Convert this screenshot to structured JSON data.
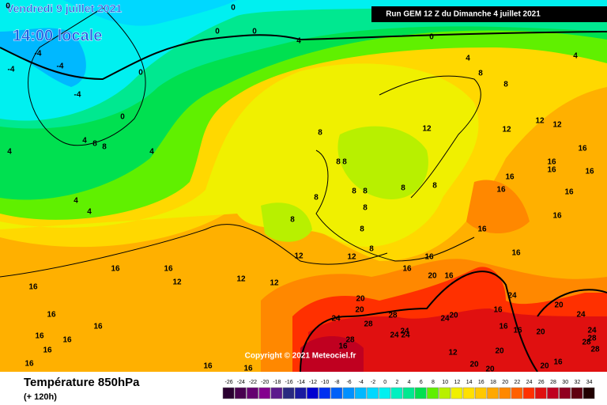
{
  "header": {
    "date": "Vendredi 9 juillet 2021",
    "time": "14:00 locale",
    "run": "Run GEM 12 Z du Dimanche 4 juillet 2021"
  },
  "copyright": "Copyright © 2021 Meteociel.fr",
  "footer": {
    "title": "Température 850hPa",
    "lead": "(+ 120h)"
  },
  "legend": {
    "values": [
      -26,
      -24,
      -22,
      -20,
      -18,
      -16,
      -14,
      -12,
      -10,
      -8,
      -6,
      -4,
      -2,
      0,
      2,
      4,
      6,
      8,
      10,
      12,
      14,
      16,
      18,
      20,
      22,
      24,
      26,
      28,
      30,
      32,
      34
    ],
    "colors": [
      "#2a0030",
      "#48004e",
      "#650070",
      "#84008e",
      "#5c1a8c",
      "#2a2a80",
      "#1a1aa0",
      "#0000d0",
      "#0030f0",
      "#0060f8",
      "#0090ff",
      "#00b8ff",
      "#00d8ff",
      "#00f0f0",
      "#00f0c0",
      "#00e890",
      "#00e050",
      "#60f000",
      "#b8f000",
      "#f0f000",
      "#ffe000",
      "#ffc800",
      "#ffa800",
      "#ff8800",
      "#ff6000",
      "#ff3000",
      "#e01010",
      "#c00020",
      "#900020",
      "#600010",
      "#200000"
    ]
  },
  "contour_labels": [
    0,
    0,
    0,
    0,
    4,
    0,
    4,
    4,
    0,
    0,
    -4,
    -4,
    -4,
    -4,
    4,
    8,
    8,
    4,
    4,
    4,
    4,
    8,
    8,
    12,
    12,
    12,
    12,
    8,
    8,
    8,
    8,
    8,
    8,
    8,
    8,
    8,
    8,
    8,
    8,
    12,
    12,
    16,
    16,
    12,
    12,
    12,
    16,
    16,
    20,
    16,
    16,
    16,
    16,
    16,
    16,
    16,
    16,
    16,
    16,
    16,
    16,
    16,
    16,
    20,
    20,
    24,
    28,
    28,
    24,
    24,
    24,
    24,
    20,
    16,
    24,
    16,
    16,
    20,
    20,
    24,
    24,
    28,
    28,
    28,
    28,
    16,
    20,
    20,
    20,
    20,
    16,
    12,
    16,
    16,
    16,
    16,
    16,
    16
  ]
}
